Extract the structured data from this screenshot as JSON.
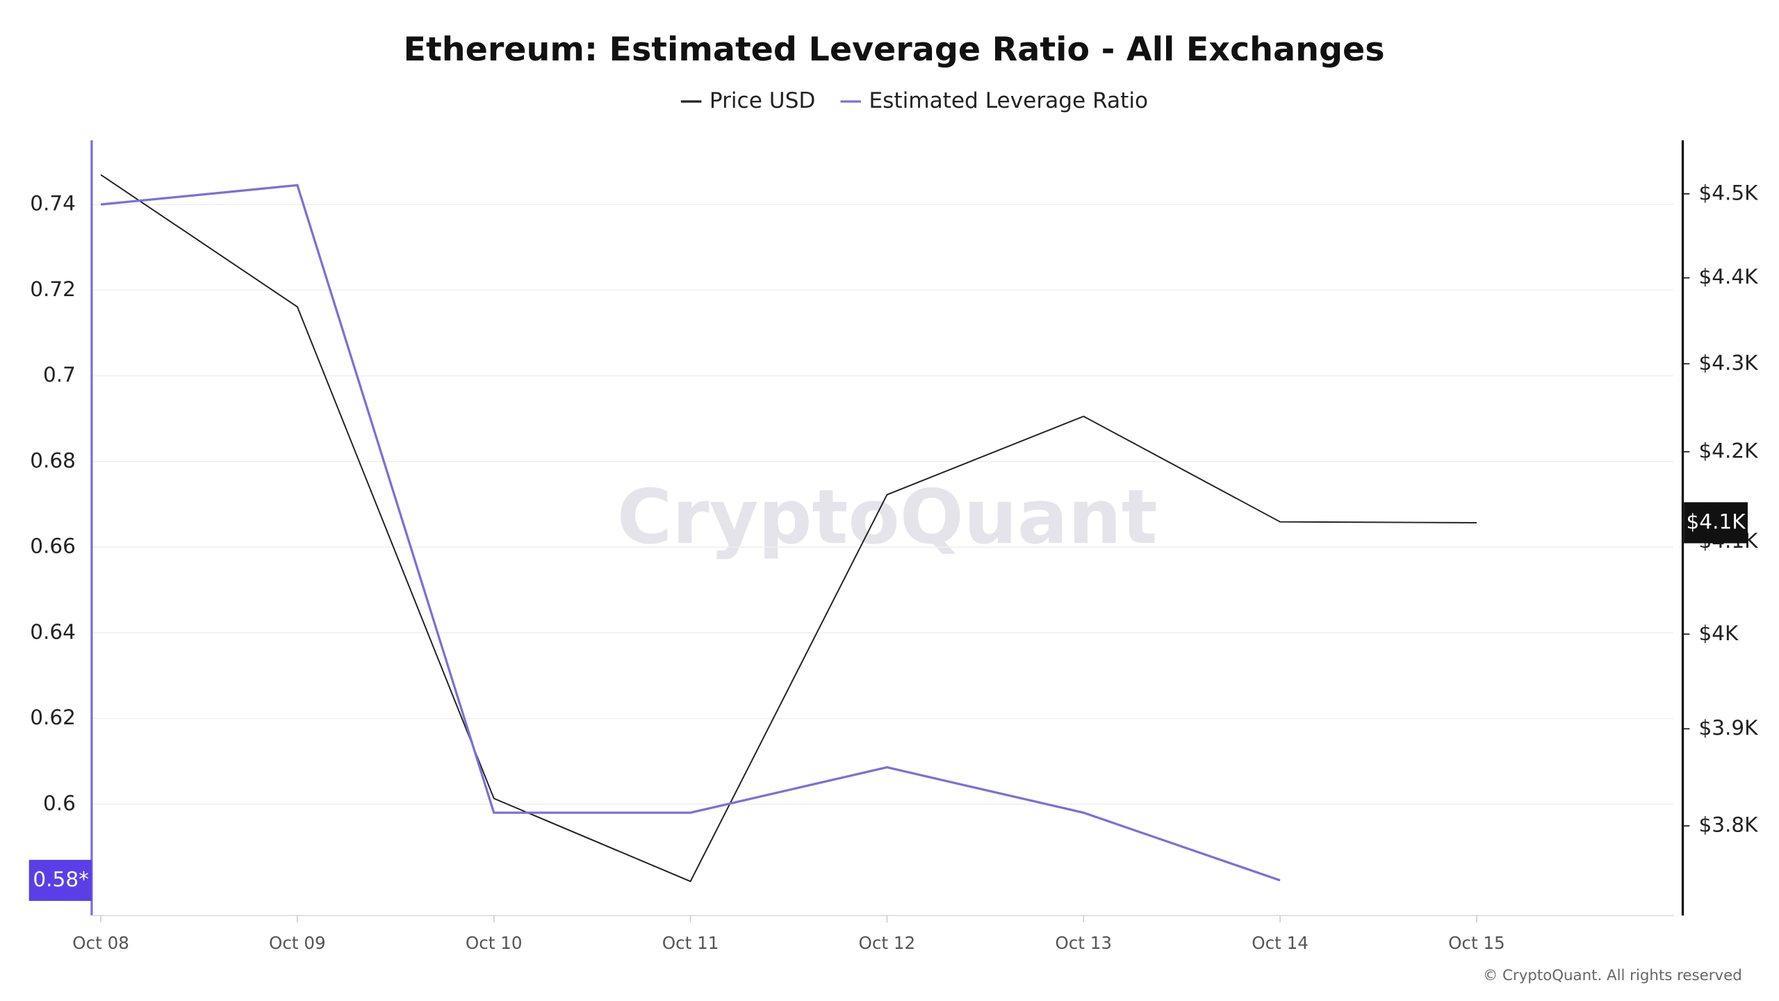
{
  "chart_data": {
    "type": "line",
    "title": "Ethereum: Estimated Leverage Ratio - All Exchanges",
    "watermark": "CryptoQuant",
    "footer": "© CryptoQuant. All rights reserved",
    "categories": [
      "Oct 08",
      "Oct 09",
      "Oct 10",
      "Oct 11",
      "Oct 12",
      "Oct 13",
      "Oct 14",
      "Oct 15"
    ],
    "series": [
      {
        "name": "Price USD",
        "color": "#222222",
        "axis": "y2",
        "badge": "$4.1K",
        "values": [
          4523,
          4366,
          3828,
          3744,
          4152,
          4240,
          4122,
          4121
        ]
      },
      {
        "name": "Estimated Leverage Ratio",
        "color": "#7b6fdc",
        "axis": "y",
        "badge": "0.58*",
        "values": [
          0.74,
          0.7445,
          0.598,
          0.598,
          0.6086,
          0.598,
          0.5822,
          null
        ]
      }
    ],
    "ylim": [
      0.574,
      0.755
    ],
    "yticks": [
      0.6,
      0.62,
      0.64,
      0.66,
      0.68,
      0.7,
      0.72,
      0.74
    ],
    "y2lim": [
      3710,
      4565
    ],
    "y2log": true,
    "y2ticks": [
      {
        "value": 3800,
        "label": "$3.8K"
      },
      {
        "value": 3900,
        "label": "$3.9K"
      },
      {
        "value": 4000,
        "label": "$4K"
      },
      {
        "value": 4100,
        "label": "$4.1K"
      },
      {
        "value": 4200,
        "label": "$4.2K"
      },
      {
        "value": 4300,
        "label": "$4.3K"
      },
      {
        "value": 4400,
        "label": "$4.4K"
      },
      {
        "value": 4500,
        "label": "$4.5K"
      }
    ],
    "grid": true
  }
}
